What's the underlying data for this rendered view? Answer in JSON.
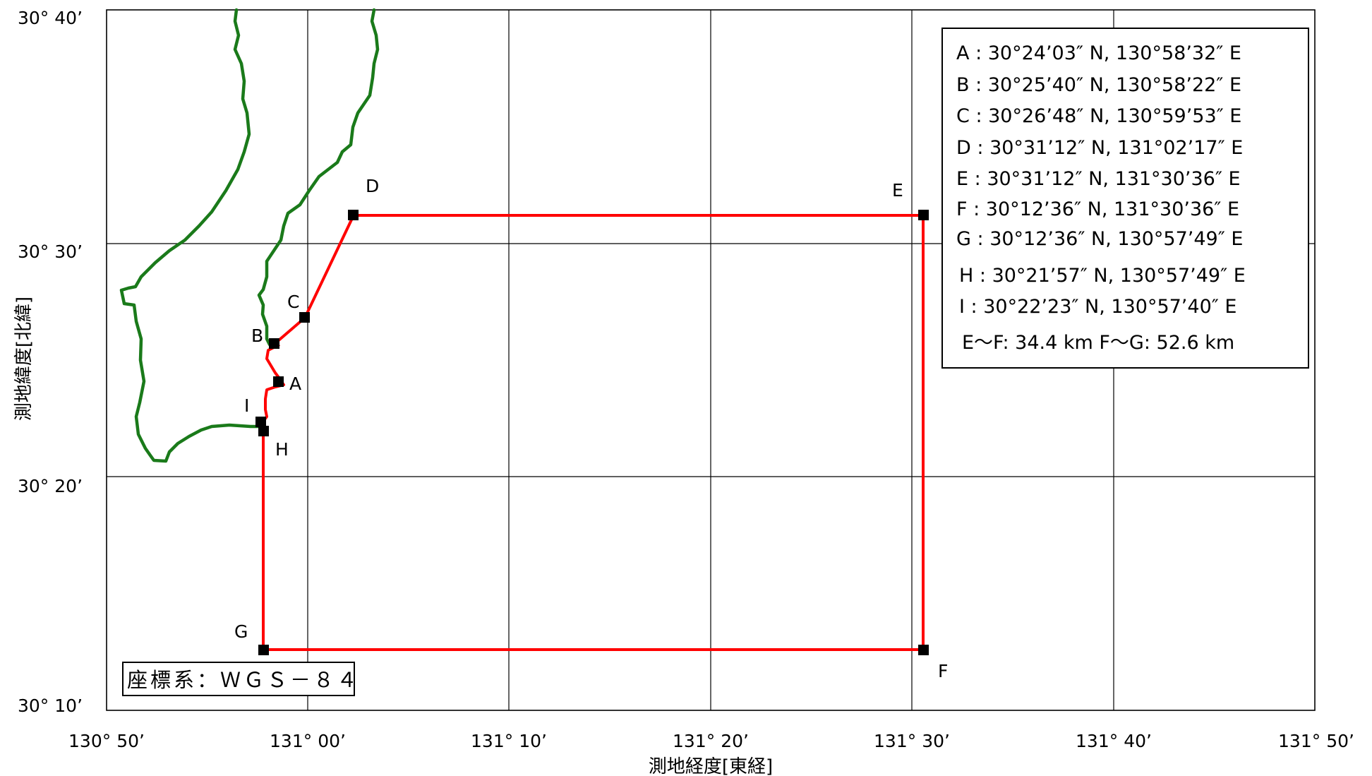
{
  "map": {
    "x_axis_title": "測地経度[東経]",
    "y_axis_title": "測地緯度[北緯]",
    "lon_ticks": [
      "130° 50’",
      "131° 00’",
      "131° 10’",
      "131° 20’",
      "131° 30’",
      "131° 40’",
      "131° 50’"
    ],
    "lat_ticks": [
      "30° 40’",
      "30° 30’",
      "30° 20’",
      "30° 10’"
    ],
    "coordinate_system": "座標系：ＷＧＳ－８４",
    "points": [
      {
        "label": "A",
        "text": "30°24’03″ N, 130°58’32″ E",
        "lat": 30.4008,
        "lon": 130.9756
      },
      {
        "label": "B",
        "text": "30°25’40″ N, 130°58’22″ E",
        "lat": 30.4278,
        "lon": 130.9728
      },
      {
        "label": "C",
        "text": "30°26’48″ N, 130°59’53″ E",
        "lat": 30.4467,
        "lon": 130.9981
      },
      {
        "label": "D",
        "text": "30°31’12″ N, 131°02’17″ E",
        "lat": 30.52,
        "lon": 131.0381
      },
      {
        "label": "E",
        "text": "30°31’12″ N, 131°30’36″ E",
        "lat": 30.52,
        "lon": 131.51
      },
      {
        "label": "F",
        "text": "30°12’36″ N, 131°30’36″ E",
        "lat": 30.21,
        "lon": 131.51
      },
      {
        "label": "G",
        "text": "30°12’36″ N, 130°57’49″ E",
        "lat": 30.21,
        "lon": 130.9636
      },
      {
        "label": "H",
        "text": "30°21’57″ N, 130°57’49″ E",
        "lat": 30.3658,
        "lon": 130.9636
      },
      {
        "label": "I",
        "text": "30°22’23″ N, 130°57’40″ E",
        "lat": 30.3731,
        "lon": 130.9611
      }
    ],
    "distances": "E～F: 34.4 km  F～G: 52.6 km",
    "colors": {
      "boundary": "#ff0000",
      "coastline": "#1a7a1a",
      "grid": "#000000",
      "marker": "#000000"
    }
  }
}
